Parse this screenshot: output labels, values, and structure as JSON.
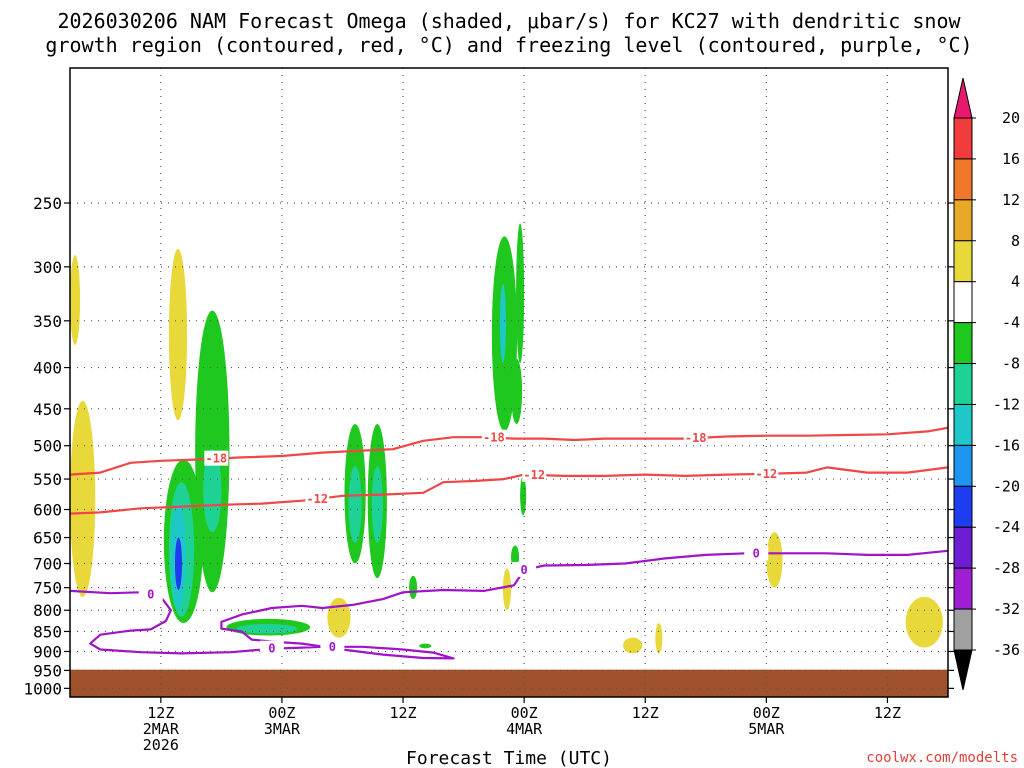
{
  "chart_data": {
    "type": "heatmap",
    "title_lines": [
      "2026030206 NAM Forecast Omega (shaded, μbar/s) for KC27 with dendritic snow",
      "growth region (contoured, red, °C) and freezing level (contoured, purple, °C)"
    ],
    "xlabel": "Forecast Time (UTC)",
    "ylabel": "",
    "credit": "coolwx.com/modelts",
    "x_range_hours": [
      -3,
      84
    ],
    "y_range_hpa": [
      1025,
      170
    ],
    "y_ticks": [
      250,
      300,
      350,
      400,
      450,
      500,
      550,
      600,
      650,
      700,
      750,
      800,
      850,
      900,
      950,
      1000
    ],
    "x_ticks": [
      {
        "hour": 6,
        "lines": [
          "12Z",
          "2MAR",
          "2026"
        ]
      },
      {
        "hour": 18,
        "lines": [
          "00Z",
          "3MAR"
        ]
      },
      {
        "hour": 30,
        "lines": [
          "12Z"
        ]
      },
      {
        "hour": 42,
        "lines": [
          "00Z",
          "4MAR"
        ]
      },
      {
        "hour": 54,
        "lines": [
          "12Z"
        ]
      },
      {
        "hour": 66,
        "lines": [
          "00Z",
          "5MAR"
        ]
      },
      {
        "hour": 78,
        "lines": [
          "12Z"
        ]
      }
    ],
    "grid": true,
    "ground_top_hpa": 948,
    "colorbar": {
      "labels": [
        "20",
        "16",
        "12",
        "8",
        "4",
        "-4",
        "-8",
        "-12",
        "-16",
        "-20",
        "-24",
        "-28",
        "-32",
        "-36"
      ],
      "colors": [
        "#e8186e",
        "#f03c3c",
        "#f07828",
        "#e8a828",
        "#e8d83a",
        "#ffffff",
        "#1ec81e",
        "#1ed296",
        "#1ec8c8",
        "#1e96f0",
        "#1e3cf0",
        "#6e1ed2",
        "#a01ed2",
        "#a0a0a0",
        "#000000"
      ]
    },
    "contours": [
      {
        "name": "dgz-minus18",
        "level": -18,
        "color": "#f04646",
        "label_hours": [
          11.5,
          39,
          59
        ],
        "points": [
          [
            -3,
            543
          ],
          [
            0,
            540
          ],
          [
            3,
            525
          ],
          [
            6,
            522
          ],
          [
            10,
            520
          ],
          [
            14,
            517
          ],
          [
            18,
            515
          ],
          [
            22,
            510
          ],
          [
            26,
            507
          ],
          [
            29,
            505
          ],
          [
            32,
            493
          ],
          [
            35,
            488
          ],
          [
            38,
            488
          ],
          [
            41,
            490
          ],
          [
            44,
            490
          ],
          [
            47,
            492
          ],
          [
            50,
            490
          ],
          [
            54,
            490
          ],
          [
            58,
            490
          ],
          [
            62,
            487
          ],
          [
            66,
            486
          ],
          [
            70,
            486
          ],
          [
            74,
            485
          ],
          [
            78,
            484
          ],
          [
            82,
            480
          ],
          [
            84,
            475
          ]
        ]
      },
      {
        "name": "dgz-minus12",
        "level": -12,
        "color": "#f04646",
        "label_hours": [
          21.5,
          43,
          66
        ],
        "points": [
          [
            -3,
            607
          ],
          [
            0,
            605
          ],
          [
            4,
            598
          ],
          [
            8,
            595
          ],
          [
            12,
            592
          ],
          [
            16,
            590
          ],
          [
            20,
            585
          ],
          [
            24,
            577
          ],
          [
            28,
            575
          ],
          [
            32,
            572
          ],
          [
            34,
            555
          ],
          [
            37,
            553
          ],
          [
            40,
            550
          ],
          [
            42,
            543
          ],
          [
            46,
            545
          ],
          [
            50,
            545
          ],
          [
            54,
            543
          ],
          [
            58,
            545
          ],
          [
            62,
            543
          ],
          [
            66,
            542
          ],
          [
            70,
            540
          ],
          [
            72,
            532
          ],
          [
            76,
            540
          ],
          [
            80,
            540
          ],
          [
            84,
            532
          ]
        ]
      },
      {
        "name": "freezing-level",
        "level": 0,
        "color": "#a014c8",
        "label_hours": [
          5,
          17,
          23,
          42,
          65
        ],
        "points": [
          [
            -3,
            757
          ],
          [
            1,
            762
          ],
          [
            4,
            760
          ],
          [
            6,
            770
          ],
          [
            7,
            800
          ],
          [
            6.5,
            825
          ],
          [
            5,
            845
          ],
          [
            3,
            848
          ],
          [
            0,
            858
          ],
          [
            -1,
            880
          ],
          [
            0,
            895
          ],
          [
            4,
            902
          ],
          [
            8,
            905
          ],
          [
            13,
            902
          ],
          [
            17,
            893
          ],
          [
            20,
            890
          ],
          [
            22,
            888
          ],
          [
            26,
            888
          ],
          [
            30,
            895
          ],
          [
            33,
            903
          ],
          [
            35,
            918
          ],
          [
            32,
            917
          ],
          [
            28,
            908
          ],
          [
            24,
            895
          ],
          [
            20,
            880
          ],
          [
            17,
            875
          ],
          [
            15,
            870
          ],
          [
            14,
            850
          ],
          [
            12,
            843
          ],
          [
            12,
            827
          ],
          [
            14,
            810
          ],
          [
            17,
            795
          ],
          [
            20,
            790
          ],
          [
            22,
            795
          ],
          [
            25,
            788
          ],
          [
            28,
            775
          ],
          [
            30,
            760
          ],
          [
            34,
            755
          ],
          [
            38,
            757
          ],
          [
            41,
            745
          ],
          [
            42,
            713
          ],
          [
            44,
            704
          ],
          [
            48,
            703
          ],
          [
            52,
            700
          ],
          [
            56,
            690
          ],
          [
            60,
            683
          ],
          [
            64,
            680
          ],
          [
            68,
            680
          ],
          [
            72,
            680
          ],
          [
            76,
            683
          ],
          [
            80,
            683
          ],
          [
            84,
            675
          ]
        ]
      }
    ],
    "shaded_regions": [
      {
        "name": "yellow-near-left-top",
        "value": 6,
        "color": "#e8d83a",
        "hours": [
          -3,
          -2
        ],
        "ptop": 290,
        "pbot": 375
      },
      {
        "name": "yellow-left-mid",
        "value": 6,
        "color": "#e8d83a",
        "hours": [
          -3,
          -0.5
        ],
        "ptop": 440,
        "pbot": 770
      },
      {
        "name": "yellow-column-6z",
        "value": 6,
        "color": "#e8d83a",
        "hours": [
          6.8,
          8.6
        ],
        "ptop": 285,
        "pbot": 465
      },
      {
        "name": "green-cell-8z",
        "value": -7,
        "color": "#1ec81e",
        "hours": [
          6.3,
          10.2
        ],
        "ptop": 520,
        "pbot": 830
      },
      {
        "name": "teal-cell-8z",
        "value": -13,
        "color": "#1ed296",
        "hours": [
          6.8,
          9.3
        ],
        "ptop": 555,
        "pbot": 815
      },
      {
        "name": "cyan-cell-8z",
        "value": -17,
        "color": "#1ec8c8",
        "hours": [
          7.0,
          8.5
        ],
        "ptop": 590,
        "pbot": 795
      },
      {
        "name": "blue-core-8z",
        "value": -21,
        "color": "#1e3cf0",
        "hours": [
          7.4,
          8.1
        ],
        "ptop": 650,
        "pbot": 755
      },
      {
        "name": "green-column-11z",
        "value": -7,
        "color": "#1ec81e",
        "hours": [
          9.4,
          12.8
        ],
        "ptop": 340,
        "pbot": 760
      },
      {
        "name": "teal-column-11z",
        "value": -13,
        "color": "#1ed296",
        "hours": [
          10.2,
          12.0
        ],
        "ptop": 505,
        "pbot": 640
      },
      {
        "name": "green-low-13z",
        "value": -7,
        "color": "#1ec81e",
        "hours": [
          12.5,
          20.8
        ],
        "ptop": 820,
        "pbot": 860
      },
      {
        "name": "teal-low-13z",
        "value": -13,
        "color": "#1ed296",
        "hours": [
          13.5,
          19.5
        ],
        "ptop": 832,
        "pbot": 855
      },
      {
        "name": "yellow-low-23z",
        "value": 6,
        "color": "#e8d83a",
        "hours": [
          22.5,
          24.8
        ],
        "ptop": 772,
        "pbot": 865
      },
      {
        "name": "green-column-24z",
        "value": -7,
        "color": "#1ec81e",
        "hours": [
          24.2,
          26.3
        ],
        "ptop": 470,
        "pbot": 700
      },
      {
        "name": "teal-column-24z",
        "value": -13,
        "color": "#1ed296",
        "hours": [
          24.6,
          25.9
        ],
        "ptop": 530,
        "pbot": 660
      },
      {
        "name": "green-column-26z",
        "value": -7,
        "color": "#1ec81e",
        "hours": [
          26.5,
          28.4
        ],
        "ptop": 470,
        "pbot": 730
      },
      {
        "name": "teal-column-26z",
        "value": -13,
        "color": "#1ed296",
        "hours": [
          26.9,
          28.0
        ],
        "ptop": 530,
        "pbot": 660
      },
      {
        "name": "green-sliver-31z",
        "value": -7,
        "color": "#1ec81e",
        "hours": [
          30.6,
          31.4
        ],
        "ptop": 725,
        "pbot": 775
      },
      {
        "name": "green-sliver-32z",
        "value": -7,
        "color": "#1ec81e",
        "hours": [
          31.6,
          32.8
        ],
        "ptop": 880,
        "pbot": 892
      },
      {
        "name": "green-column-39z",
        "value": -7,
        "color": "#1ec81e",
        "hours": [
          38.8,
          41.3
        ],
        "ptop": 275,
        "pbot": 480
      },
      {
        "name": "cyan-column-39z",
        "value": -15,
        "color": "#1ec8c8",
        "hours": [
          39.6,
          40.2
        ],
        "ptop": 315,
        "pbot": 395
      },
      {
        "name": "green-column-42z",
        "value": -7,
        "color": "#1ec81e",
        "hours": [
          41.2,
          42.0
        ],
        "ptop": 265,
        "pbot": 395
      },
      {
        "name": "green-tail-41z",
        "value": -7,
        "color": "#1ec81e",
        "hours": [
          40.7,
          41.8
        ],
        "ptop": 390,
        "pbot": 470
      },
      {
        "name": "green-sliver-42z",
        "value": -7,
        "color": "#1ec81e",
        "hours": [
          41.6,
          42.2
        ],
        "ptop": 545,
        "pbot": 610
      },
      {
        "name": "green-sliver-41z-low",
        "value": -7,
        "color": "#1ec81e",
        "hours": [
          40.7,
          41.5
        ],
        "ptop": 665,
        "pbot": 710
      },
      {
        "name": "yellow-sliver-40z",
        "value": 6,
        "color": "#e8d83a",
        "hours": [
          39.9,
          40.7
        ],
        "ptop": 710,
        "pbot": 800
      },
      {
        "name": "yellow-blob-52z",
        "value": 6,
        "color": "#e8d83a",
        "hours": [
          51.8,
          53.7
        ],
        "ptop": 865,
        "pbot": 905
      },
      {
        "name": "yellow-blob-55z",
        "value": 6,
        "color": "#e8d83a",
        "hours": [
          55.0,
          55.7
        ],
        "ptop": 830,
        "pbot": 905
      },
      {
        "name": "yellow-blob-66z",
        "value": 6,
        "color": "#e8d83a",
        "hours": [
          66.0,
          67.6
        ],
        "ptop": 640,
        "pbot": 750
      },
      {
        "name": "yellow-blob-80z",
        "value": 6,
        "color": "#e8d83a",
        "hours": [
          79.8,
          83.5
        ],
        "ptop": 770,
        "pbot": 890
      }
    ]
  }
}
